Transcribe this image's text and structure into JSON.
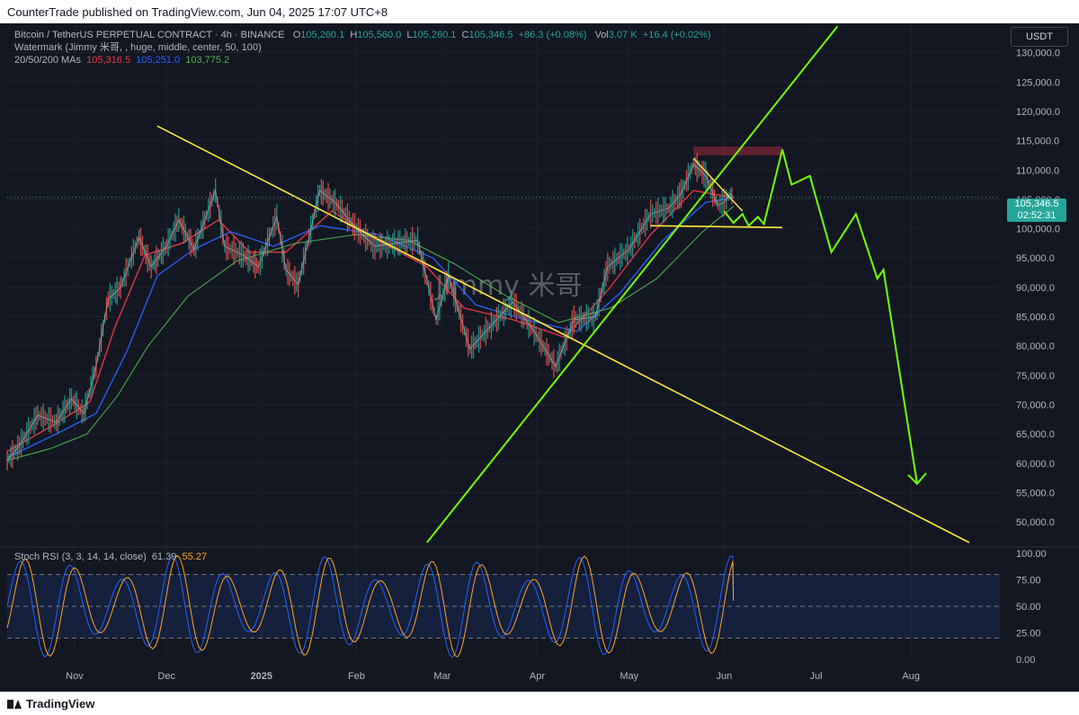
{
  "publisher_line": "CounterTrade published on TradingView.com, Jun 04, 2025 17:07 UTC+8",
  "footer_brand": "TradingView",
  "currency_button": "USDT",
  "legend": {
    "symbol": "Bitcoin / TetherUS PERPETUAL CONTRACT · 4h · BINANCE",
    "o_label": "O",
    "o": "105,260.1",
    "h_label": "H",
    "h": "105,560.0",
    "l_label": "L",
    "l": "105,260.1",
    "c_label": "C",
    "c": "105,346.5",
    "change": "+86.3 (+0.08%)",
    "vol_label": "Vol",
    "vol": "3.07 K",
    "vol_change": "+16.4 (+0.02%)",
    "watermark_line": "Watermark (Jimmy 米哥, , huge, middle, center, 50, 100)",
    "ma_label": "20/50/200 MAs",
    "ma20": "105,316.5",
    "ma50": "105,251.0",
    "ma200": "103,775.2"
  },
  "watermark_text": "Jimmy 米哥",
  "price_tag": {
    "price": "105,346.5",
    "countdown": "02:52:31"
  },
  "rsi_legend": {
    "label": "Stoch RSI (3, 3, 14, 14, close)",
    "k": "61.39",
    "d": "55.27"
  },
  "colors": {
    "background": "#131722",
    "grid": "#1e222d",
    "up_candle": "#26a69a",
    "down_candle": "#ef5350",
    "ma20": "#f23645",
    "ma50": "#2962ff",
    "ma200": "#4caf50",
    "trendline_yellow": "#ffeb3b",
    "projection_green": "#76ff03",
    "rsi_k": "#2962ff",
    "rsi_d": "#ffa726"
  },
  "chart_data": {
    "type": "line",
    "title": "Bitcoin / TetherUS PERPETUAL CONTRACT · 4h · BINANCE",
    "xlabel": "",
    "ylabel": "",
    "y_ticks": [
      130000,
      125000,
      120000,
      115000,
      110000,
      105000,
      100000,
      95000,
      90000,
      85000,
      80000,
      75000,
      70000,
      65000,
      60000,
      55000,
      50000
    ],
    "y_tick_labels": [
      "130,000.0",
      "125,000.0",
      "120,000.0",
      "115,000.0",
      "110,000.0",
      "105,000.0",
      "100,000.0",
      "95,000.0",
      "90,000.0",
      "85,000.0",
      "80,000.0",
      "75,000.0",
      "70,000.0",
      "65,000.0",
      "60,000.0",
      "55,000.0",
      "50,000.0"
    ],
    "ylim": [
      46500,
      135000
    ],
    "x_tick_labels": [
      {
        "label": "Nov",
        "date": "2024-11-01",
        "bold": false
      },
      {
        "label": "Dec",
        "date": "2024-12-01",
        "bold": false
      },
      {
        "label": "2025",
        "date": "2025-01-01",
        "bold": true
      },
      {
        "label": "Feb",
        "date": "2025-02-01",
        "bold": false
      },
      {
        "label": "Mar",
        "date": "2025-03-01",
        "bold": false
      },
      {
        "label": "Apr",
        "date": "2025-04-01",
        "bold": false
      },
      {
        "label": "May",
        "date": "2025-05-01",
        "bold": false
      },
      {
        "label": "Jun",
        "date": "2025-06-01",
        "bold": false
      },
      {
        "label": "Jul",
        "date": "2025-07-01",
        "bold": false
      },
      {
        "label": "Aug",
        "date": "2025-08-01",
        "bold": false
      }
    ],
    "xlim": [
      "2024-10-10",
      "2025-08-30"
    ],
    "price_series": [
      {
        "date": "2024-10-10",
        "price": 60500
      },
      {
        "date": "2024-10-14",
        "price": 63000
      },
      {
        "date": "2024-10-20",
        "price": 68200
      },
      {
        "date": "2024-10-26",
        "price": 67000
      },
      {
        "date": "2024-10-31",
        "price": 71000
      },
      {
        "date": "2024-11-04",
        "price": 68500
      },
      {
        "date": "2024-11-08",
        "price": 76500
      },
      {
        "date": "2024-11-12",
        "price": 88000
      },
      {
        "date": "2024-11-16",
        "price": 90000
      },
      {
        "date": "2024-11-22",
        "price": 98500
      },
      {
        "date": "2024-11-26",
        "price": 93500
      },
      {
        "date": "2024-12-01",
        "price": 97000
      },
      {
        "date": "2024-12-05",
        "price": 101500
      },
      {
        "date": "2024-12-10",
        "price": 96500
      },
      {
        "date": "2024-12-17",
        "price": 106500
      },
      {
        "date": "2024-12-20",
        "price": 97000
      },
      {
        "date": "2024-12-26",
        "price": 95500
      },
      {
        "date": "2024-12-31",
        "price": 93500
      },
      {
        "date": "2025-01-06",
        "price": 102000
      },
      {
        "date": "2025-01-09",
        "price": 93000
      },
      {
        "date": "2025-01-13",
        "price": 90500
      },
      {
        "date": "2025-01-20",
        "price": 106500
      },
      {
        "date": "2025-01-25",
        "price": 104500
      },
      {
        "date": "2025-02-01",
        "price": 100000
      },
      {
        "date": "2025-02-07",
        "price": 97000
      },
      {
        "date": "2025-02-14",
        "price": 97500
      },
      {
        "date": "2025-02-21",
        "price": 98000
      },
      {
        "date": "2025-02-27",
        "price": 84500
      },
      {
        "date": "2025-03-03",
        "price": 92000
      },
      {
        "date": "2025-03-10",
        "price": 79500
      },
      {
        "date": "2025-03-17",
        "price": 83500
      },
      {
        "date": "2025-03-24",
        "price": 87500
      },
      {
        "date": "2025-03-31",
        "price": 82500
      },
      {
        "date": "2025-04-07",
        "price": 76500
      },
      {
        "date": "2025-04-13",
        "price": 84500
      },
      {
        "date": "2025-04-20",
        "price": 85000
      },
      {
        "date": "2025-04-24",
        "price": 93500
      },
      {
        "date": "2025-05-01",
        "price": 96500
      },
      {
        "date": "2025-05-08",
        "price": 102500
      },
      {
        "date": "2025-05-14",
        "price": 103500
      },
      {
        "date": "2025-05-18",
        "price": 106000
      },
      {
        "date": "2025-05-22",
        "price": 111000
      },
      {
        "date": "2025-05-26",
        "price": 109000
      },
      {
        "date": "2025-05-30",
        "price": 104000
      },
      {
        "date": "2025-06-01",
        "price": 104500
      },
      {
        "date": "2025-06-03",
        "price": 106000
      },
      {
        "date": "2025-06-04",
        "price": 105346.5
      }
    ],
    "series": [
      {
        "name": "20 MA",
        "values": [
          {
            "date": "2024-10-10",
            "price": 62000
          },
          {
            "date": "2024-10-26",
            "price": 66800
          },
          {
            "date": "2024-11-06",
            "price": 70500
          },
          {
            "date": "2024-11-14",
            "price": 83000
          },
          {
            "date": "2024-11-24",
            "price": 95500
          },
          {
            "date": "2024-12-06",
            "price": 97500
          },
          {
            "date": "2024-12-18",
            "price": 101500
          },
          {
            "date": "2024-12-28",
            "price": 96000
          },
          {
            "date": "2025-01-09",
            "price": 96000
          },
          {
            "date": "2025-01-24",
            "price": 103000
          },
          {
            "date": "2025-02-08",
            "price": 98000
          },
          {
            "date": "2025-02-24",
            "price": 93500
          },
          {
            "date": "2025-03-08",
            "price": 86500
          },
          {
            "date": "2025-03-24",
            "price": 84500
          },
          {
            "date": "2025-04-10",
            "price": 81500
          },
          {
            "date": "2025-04-24",
            "price": 89500
          },
          {
            "date": "2025-05-08",
            "price": 99000
          },
          {
            "date": "2025-05-22",
            "price": 106500
          },
          {
            "date": "2025-06-04",
            "price": 105316.5
          }
        ]
      },
      {
        "name": "50 MA",
        "values": [
          {
            "date": "2024-10-10",
            "price": 61000
          },
          {
            "date": "2024-10-26",
            "price": 65000
          },
          {
            "date": "2024-11-08",
            "price": 68500
          },
          {
            "date": "2024-11-18",
            "price": 79000
          },
          {
            "date": "2024-11-28",
            "price": 92000
          },
          {
            "date": "2024-12-10",
            "price": 96500
          },
          {
            "date": "2024-12-22",
            "price": 99500
          },
          {
            "date": "2025-01-05",
            "price": 97000
          },
          {
            "date": "2025-01-20",
            "price": 100500
          },
          {
            "date": "2025-02-08",
            "price": 99000
          },
          {
            "date": "2025-02-26",
            "price": 95000
          },
          {
            "date": "2025-03-12",
            "price": 87000
          },
          {
            "date": "2025-03-28",
            "price": 84500
          },
          {
            "date": "2025-04-14",
            "price": 82500
          },
          {
            "date": "2025-04-28",
            "price": 89000
          },
          {
            "date": "2025-05-12",
            "price": 98000
          },
          {
            "date": "2025-05-26",
            "price": 104500
          },
          {
            "date": "2025-06-04",
            "price": 105251
          }
        ]
      },
      {
        "name": "200 MA",
        "values": [
          {
            "date": "2024-10-10",
            "price": 60500
          },
          {
            "date": "2024-10-24",
            "price": 62500
          },
          {
            "date": "2024-11-05",
            "price": 65000
          },
          {
            "date": "2024-11-15",
            "price": 71500
          },
          {
            "date": "2024-11-25",
            "price": 80000
          },
          {
            "date": "2024-12-08",
            "price": 88500
          },
          {
            "date": "2024-12-24",
            "price": 94500
          },
          {
            "date": "2025-01-12",
            "price": 97500
          },
          {
            "date": "2025-02-01",
            "price": 99000
          },
          {
            "date": "2025-02-18",
            "price": 98000
          },
          {
            "date": "2025-03-05",
            "price": 94000
          },
          {
            "date": "2025-03-22",
            "price": 88500
          },
          {
            "date": "2025-04-08",
            "price": 84000
          },
          {
            "date": "2025-04-25",
            "price": 86500
          },
          {
            "date": "2025-05-10",
            "price": 91500
          },
          {
            "date": "2025-05-25",
            "price": 99500
          },
          {
            "date": "2025-06-04",
            "price": 103775.2
          }
        ]
      }
    ],
    "annotations": {
      "yellow_descending_trendline": [
        {
          "date": "2024-11-28",
          "price": 117500
        },
        {
          "date": "2025-08-20",
          "price": 46500
        }
      ],
      "green_ascending_trendline": [
        {
          "date": "2025-02-24",
          "price": 46500
        },
        {
          "date": "2025-07-08",
          "price": 134500
        }
      ],
      "yellow_support_line": [
        {
          "date": "2025-05-08",
          "price": 100500
        },
        {
          "date": "2025-06-20",
          "price": 100200
        }
      ],
      "yellow_triangle_upper": [
        {
          "date": "2025-05-22",
          "price": 112000
        },
        {
          "date": "2025-06-07",
          "price": 103000
        }
      ],
      "resistance_zone": {
        "date_from": "2025-05-22",
        "date_to": "2025-06-20",
        "price_from": 112500,
        "price_to": 114000
      },
      "green_projection_path": [
        {
          "date": "2025-06-01",
          "price": 103000
        },
        {
          "date": "2025-06-04",
          "price": 101000
        },
        {
          "date": "2025-06-07",
          "price": 102500
        },
        {
          "date": "2025-06-09",
          "price": 100500
        },
        {
          "date": "2025-06-12",
          "price": 102000
        },
        {
          "date": "2025-06-14",
          "price": 100800
        },
        {
          "date": "2025-06-20",
          "price": 113500
        },
        {
          "date": "2025-06-23",
          "price": 107500
        },
        {
          "date": "2025-06-29",
          "price": 109000
        },
        {
          "date": "2025-07-06",
          "price": 96000
        },
        {
          "date": "2025-07-14",
          "price": 102500
        },
        {
          "date": "2025-07-21",
          "price": 91500
        },
        {
          "date": "2025-07-23",
          "price": 93000
        },
        {
          "date": "2025-08-03",
          "price": 56500
        }
      ]
    },
    "stoch_rsi": {
      "ylim": [
        0,
        100
      ],
      "y_ticks": [
        100,
        75,
        50,
        25,
        0
      ],
      "y_tick_labels": [
        "100.00",
        "75.00",
        "50.00",
        "25.00",
        "0.00"
      ],
      "band": [
        20,
        80
      ],
      "k_last": 61.39,
      "d_last": 55.27
    }
  }
}
